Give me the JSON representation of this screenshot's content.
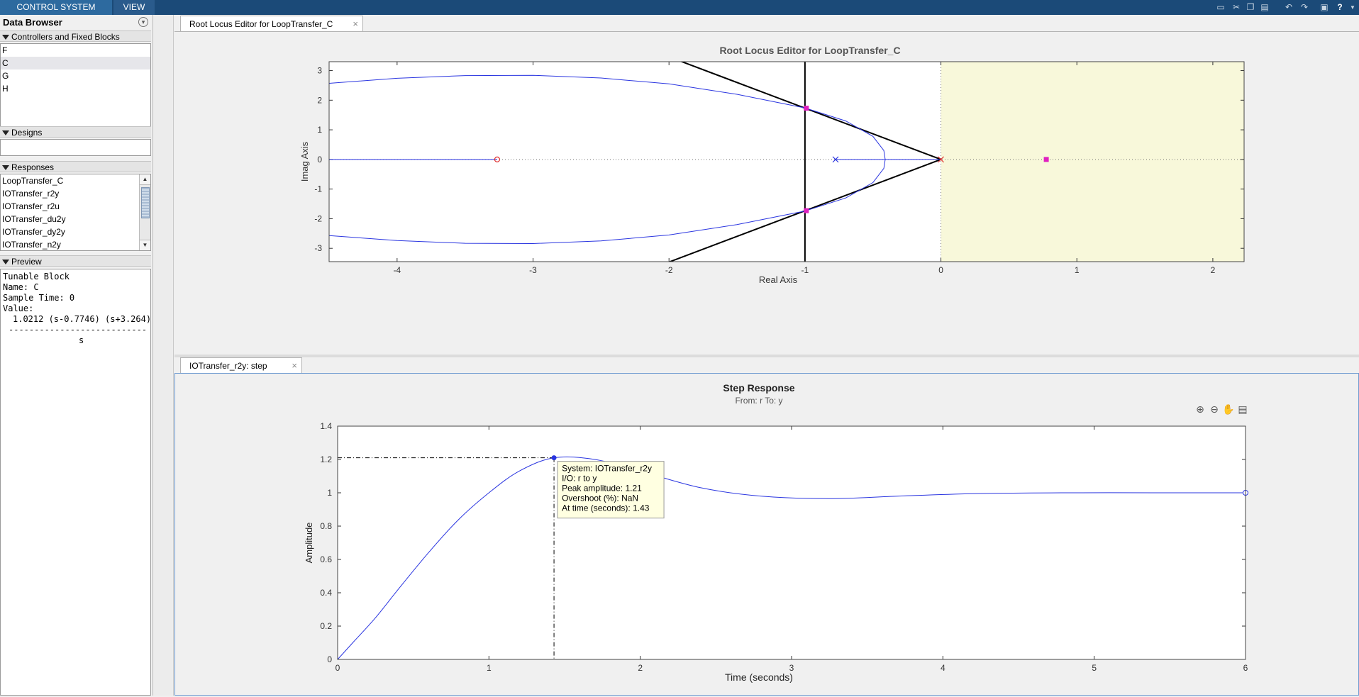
{
  "toolstrip": {
    "tabs": [
      "CONTROL SYSTEM",
      "VIEW"
    ],
    "quick_access_icons": [
      "save-icon",
      "cut-icon",
      "copy-icon",
      "paste-icon",
      "undo-icon",
      "redo-icon",
      "print-icon",
      "help-icon",
      "dropdown-icon"
    ],
    "help_label": "?"
  },
  "data_browser": {
    "title": "Data Browser",
    "controllers_section": "Controllers and Fixed Blocks",
    "controllers": [
      "F",
      "C",
      "G",
      "H"
    ],
    "selected_controller": "C",
    "designs_section": "Designs",
    "responses_section": "Responses",
    "responses": [
      "LoopTransfer_C",
      "IOTransfer_r2y",
      "IOTransfer_r2u",
      "IOTransfer_du2y",
      "IOTransfer_dy2y",
      "IOTransfer_n2y"
    ],
    "preview_section": "Preview",
    "preview": {
      "line1": "Tunable Block",
      "line2": "Name: C",
      "line3": "Sample Time: 0",
      "line4": "Value:",
      "numerator": "1.0212 (s-0.7746) (s+3.264)",
      "divider": "---------------------------",
      "denominator": "s"
    }
  },
  "documents": {
    "top_tab": "Root Locus Editor for LoopTransfer_C",
    "bottom_tab": "IOTransfer_r2y: step"
  },
  "chart_data": [
    {
      "type": "line",
      "title": "Root Locus Editor for LoopTransfer_C",
      "xlabel": "Real Axis",
      "ylabel": "Imag Axis",
      "xlim": [
        -4.5,
        2.23
      ],
      "ylim": [
        -3.45,
        3.3
      ],
      "xticks": [
        -4,
        -3,
        -2,
        -1,
        0,
        1,
        2
      ],
      "yticks": [
        -3,
        -2,
        -1,
        0,
        1,
        2,
        3
      ],
      "grid": "dotted axes",
      "unstable_region": "Re > 0 shaded",
      "constraint_lines": {
        "settling_real": -1,
        "damping_ratio": 0.5
      },
      "open_loop_poles": [
        [
          0,
          0
        ],
        [
          -0.775,
          0
        ]
      ],
      "open_loop_zeros": [
        [
          -3.264,
          0
        ]
      ],
      "closed_loop_poles": [
        [
          -0.99,
          1.73
        ],
        [
          -0.99,
          -1.73
        ],
        [
          0.775,
          0
        ]
      ],
      "branches": [
        {
          "name": "upper",
          "points": [
            [
              -4.5,
              2.57
            ],
            [
              -4.0,
              2.74
            ],
            [
              -3.5,
              2.83
            ],
            [
              -3.0,
              2.84
            ],
            [
              -2.5,
              2.75
            ],
            [
              -2.0,
              2.55
            ],
            [
              -1.5,
              2.2
            ],
            [
              -1.0,
              1.74
            ],
            [
              -0.7,
              1.3
            ],
            [
              -0.5,
              0.78
            ],
            [
              -0.42,
              0.3
            ],
            [
              -0.41,
              0
            ]
          ]
        },
        {
          "name": "lower",
          "points": [
            [
              -4.5,
              -2.57
            ],
            [
              -4.0,
              -2.74
            ],
            [
              -3.5,
              -2.83
            ],
            [
              -3.0,
              -2.84
            ],
            [
              -2.5,
              -2.75
            ],
            [
              -2.0,
              -2.55
            ],
            [
              -1.5,
              -2.2
            ],
            [
              -1.0,
              -1.74
            ],
            [
              -0.7,
              -1.3
            ],
            [
              -0.5,
              -0.78
            ],
            [
              -0.42,
              -0.3
            ],
            [
              -0.41,
              0
            ]
          ]
        },
        {
          "name": "real-axis",
          "points": [
            [
              -4.5,
              0
            ],
            [
              -3.264,
              0
            ]
          ]
        },
        {
          "name": "real-axis-2",
          "points": [
            [
              -0.775,
              0
            ],
            [
              0,
              0
            ]
          ]
        }
      ]
    },
    {
      "type": "line",
      "title": "Step Response",
      "subtitle": "From: r  To: y",
      "xlabel": "Time (seconds)",
      "ylabel": "Amplitude",
      "xlim": [
        0,
        6
      ],
      "ylim": [
        0,
        1.4
      ],
      "xticks": [
        0,
        1,
        2,
        3,
        4,
        5,
        6
      ],
      "yticks": [
        0,
        0.2,
        0.4,
        0.6,
        0.8,
        1,
        1.2,
        1.4
      ],
      "series": [
        {
          "name": "IOTransfer_r2y",
          "x": [
            0,
            0.1,
            0.25,
            0.4,
            0.6,
            0.8,
            1.0,
            1.2,
            1.43,
            1.7,
            2.0,
            2.4,
            2.8,
            3.25,
            3.7,
            4.2,
            4.8,
            5.4,
            6.0
          ],
          "y": [
            0,
            0.1,
            0.25,
            0.42,
            0.64,
            0.84,
            1.0,
            1.13,
            1.21,
            1.2,
            1.13,
            1.03,
            0.98,
            0.965,
            0.98,
            0.995,
            1.0,
            1.0,
            1.0
          ]
        }
      ],
      "peak": {
        "time": 1.43,
        "amplitude": 1.21
      },
      "tooltip": {
        "system": "System: IOTransfer_r2y",
        "io": "I/O: r to y",
        "peak": "Peak amplitude: 1.21",
        "overshoot": "Overshoot (%): NaN",
        "time": "At time (seconds): 1.43"
      },
      "toolbar_icons": [
        "zoom-in-icon",
        "zoom-out-icon",
        "pan-hand-icon",
        "legend-icon"
      ]
    }
  ],
  "colors": {
    "toolstrip": "#1b4a78",
    "locus": "#2a35e0",
    "closed_loop_pole": "#e020c0",
    "zero_marker": "#e03030",
    "unstable_region": "#f8f8da"
  }
}
